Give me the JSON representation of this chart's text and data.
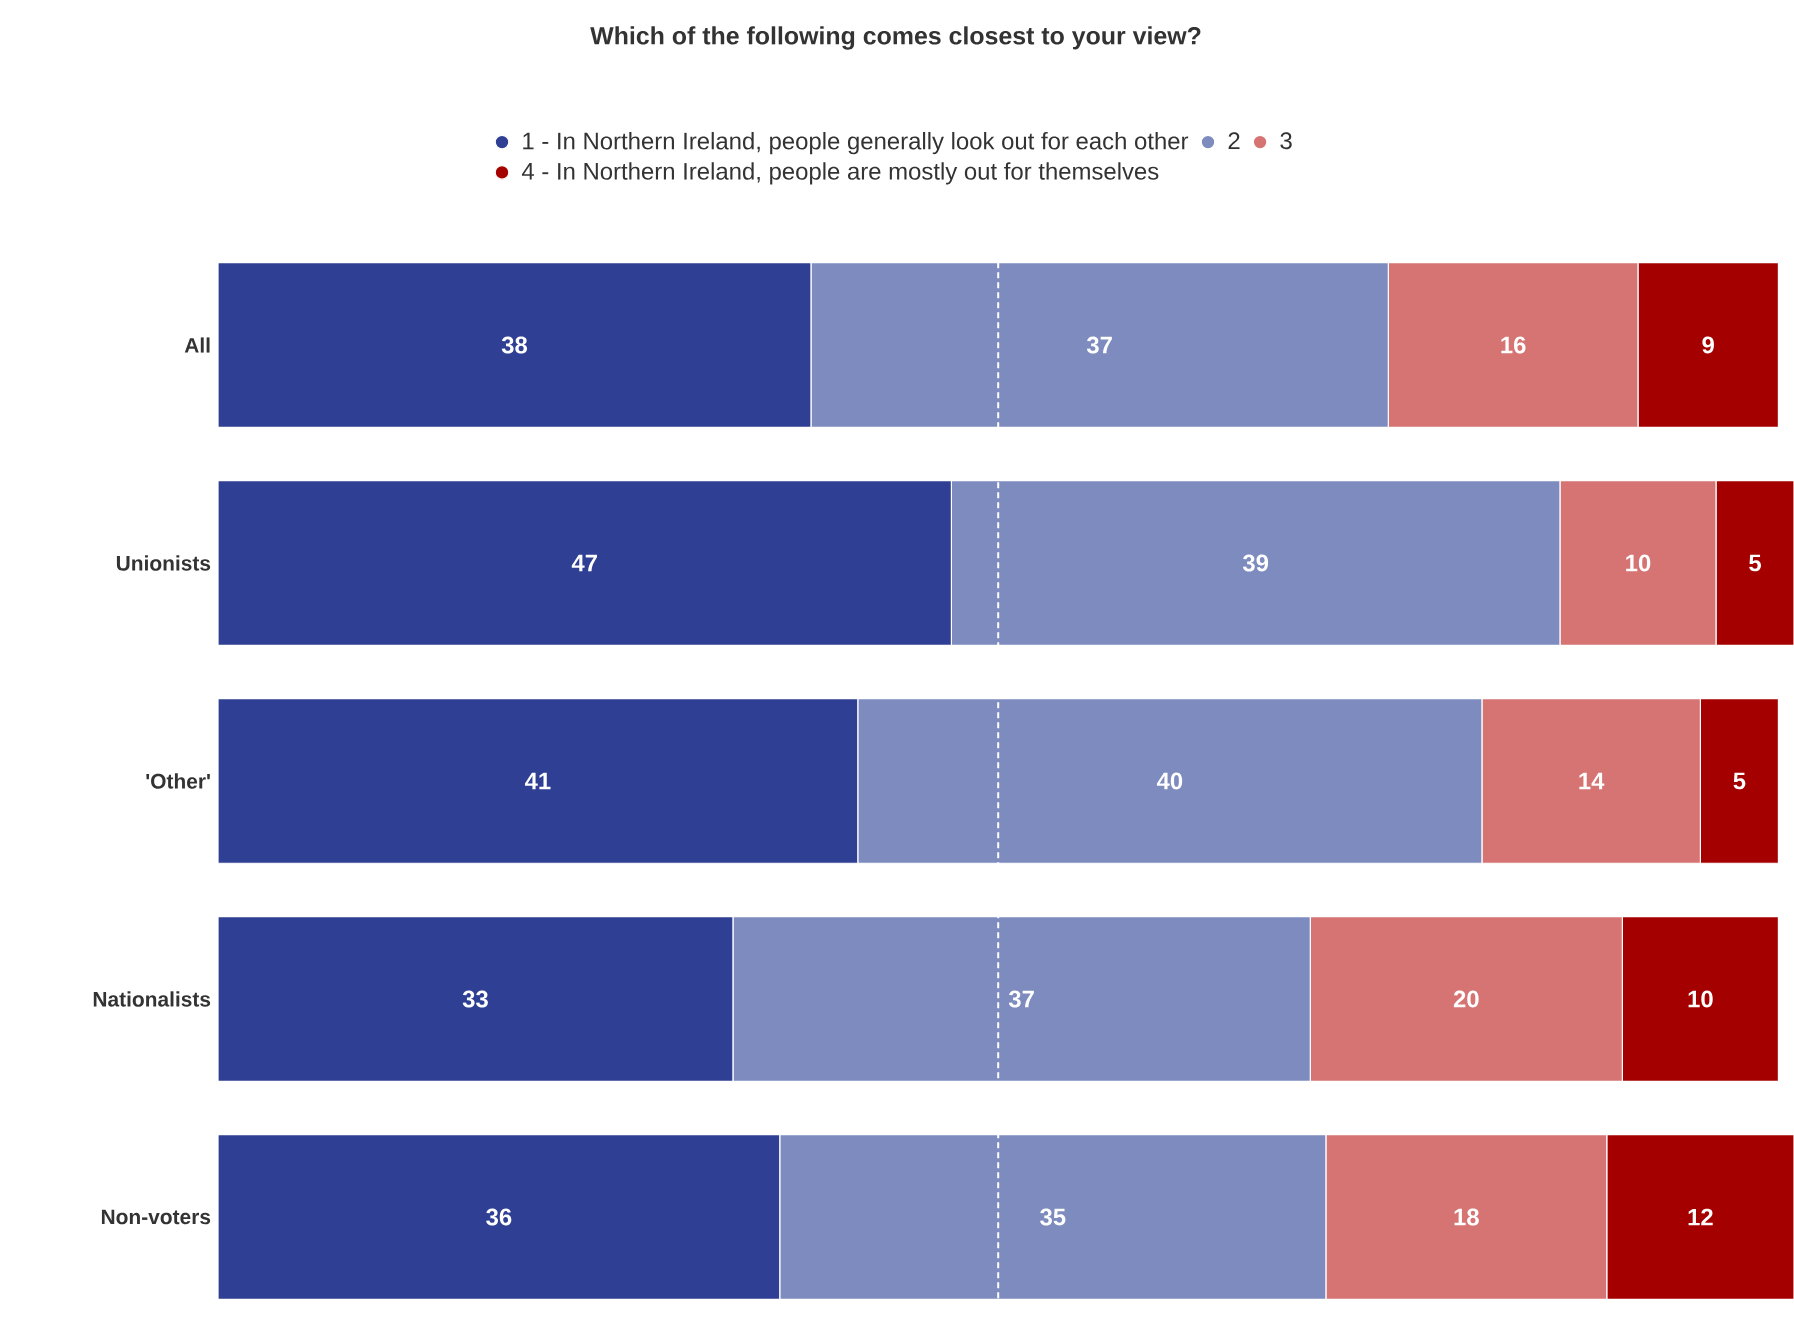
{
  "chart_data": {
    "type": "bar",
    "orientation": "horizontal",
    "stacked": true,
    "title": "Which of the following comes closest to your view?",
    "categories": [
      "All",
      "Unionists",
      "'Other'",
      "Nationalists",
      "Non-voters"
    ],
    "series": [
      {
        "name": "1 - In Northern Ireland, people generally look out for each other",
        "color": "#2e3f94",
        "values": [
          38,
          47,
          41,
          33,
          36
        ]
      },
      {
        "name": "2",
        "color": "#7d8bbf",
        "values": [
          37,
          39,
          40,
          37,
          35
        ]
      },
      {
        "name": "3",
        "color": "#d57472",
        "values": [
          16,
          10,
          14,
          20,
          18
        ]
      },
      {
        "name": "4 - In Northern Ireland, people are mostly out for themselves",
        "color": "#a50000",
        "values": [
          9,
          5,
          5,
          10,
          12
        ]
      }
    ],
    "tick_labels": "y",
    "data_labels": true,
    "legend": "top",
    "ref_lines": [
      {
        "axis": "x",
        "value": 50,
        "color": "#ffffff",
        "line_style": "dashed"
      }
    ]
  }
}
